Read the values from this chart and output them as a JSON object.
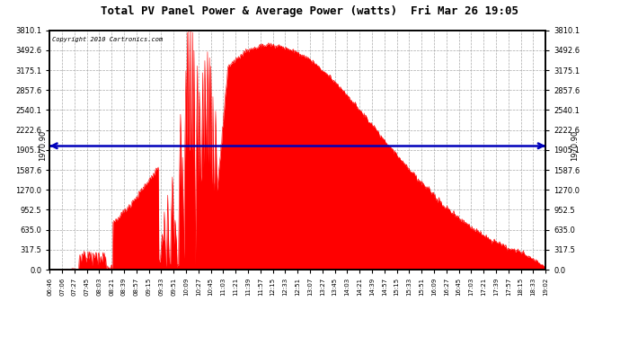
{
  "title": "Total PV Panel Power & Average Power (watts)  Fri Mar 26 19:05",
  "copyright": "Copyright 2010 Cartronics.com",
  "average_power": 1970.9,
  "y_max": 3810.1,
  "y_min": 0.0,
  "ytick_values": [
    0.0,
    317.5,
    635.0,
    952.5,
    1270.0,
    1587.6,
    1905.1,
    2222.6,
    2540.1,
    2857.6,
    3175.1,
    3492.6,
    3810.1
  ],
  "fill_color": "#FF0000",
  "line_color": "#FF0000",
  "avg_line_color": "#0000BB",
  "background_color": "#FFFFFF",
  "plot_bg_color": "#FFFFFF",
  "grid_color": "#AAAAAA",
  "x_tick_labels": [
    "06:46",
    "07:06",
    "07:27",
    "07:45",
    "08:03",
    "08:21",
    "08:39",
    "08:57",
    "09:15",
    "09:33",
    "09:51",
    "10:09",
    "10:27",
    "10:45",
    "11:03",
    "11:21",
    "11:39",
    "11:57",
    "12:15",
    "12:33",
    "12:51",
    "13:07",
    "13:27",
    "13:45",
    "14:03",
    "14:21",
    "14:39",
    "14:57",
    "15:15",
    "15:33",
    "15:51",
    "16:09",
    "16:27",
    "16:45",
    "17:03",
    "17:21",
    "17:39",
    "17:57",
    "18:15",
    "18:33",
    "19:02"
  ]
}
